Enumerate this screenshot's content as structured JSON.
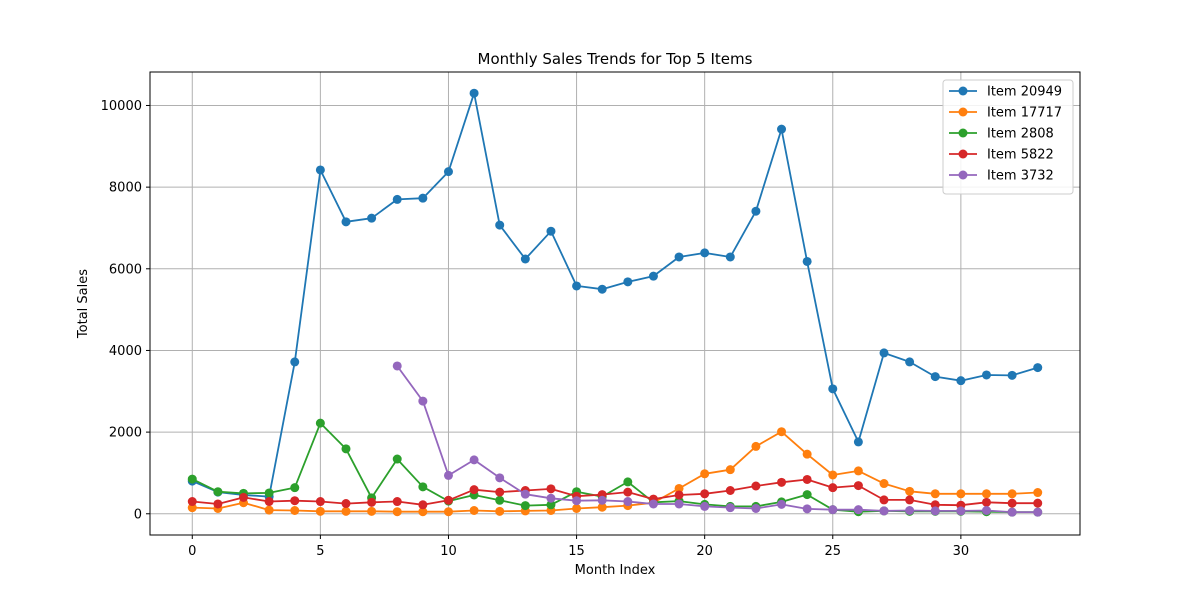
{
  "chart_data": {
    "type": "line",
    "title": "Monthly Sales Trends for Top 5 Items",
    "xlabel": "Month Index",
    "ylabel": "Total Sales",
    "xlim": [
      -1.65,
      34.65
    ],
    "ylim": [
      -520,
      10820
    ],
    "x_ticks": [
      0,
      5,
      10,
      15,
      20,
      25,
      30
    ],
    "y_ticks": [
      0,
      2000,
      4000,
      6000,
      8000,
      10000
    ],
    "grid": true,
    "legend_position": "top-right",
    "series": [
      {
        "name": "Item 20949",
        "color": "#1f77b4",
        "x": [
          0,
          1,
          2,
          3,
          4,
          5,
          6,
          7,
          8,
          9,
          10,
          11,
          12,
          13,
          14,
          15,
          16,
          17,
          18,
          19,
          20,
          21,
          22,
          23,
          24,
          25,
          26,
          27,
          28,
          29,
          30,
          31,
          32,
          33
        ],
        "values": [
          800,
          530,
          460,
          420,
          3720,
          8420,
          7150,
          7240,
          7700,
          7730,
          8380,
          10300,
          7070,
          6240,
          6920,
          5580,
          5500,
          5680,
          5820,
          6290,
          6390,
          6290,
          7410,
          9420,
          6180,
          3060,
          1760,
          3940,
          3720,
          3360,
          3260,
          3400,
          3390,
          3580
        ]
      },
      {
        "name": "Item 17717",
        "color": "#ff7f0e",
        "x": [
          0,
          1,
          2,
          3,
          4,
          5,
          6,
          7,
          8,
          9,
          10,
          11,
          12,
          13,
          14,
          15,
          16,
          17,
          18,
          19,
          20,
          21,
          22,
          23,
          24,
          25,
          26,
          27,
          28,
          29,
          30,
          31,
          32,
          33
        ],
        "values": [
          150,
          130,
          270,
          90,
          80,
          60,
          60,
          60,
          50,
          50,
          50,
          80,
          60,
          70,
          80,
          130,
          160,
          200,
          270,
          620,
          980,
          1080,
          1650,
          2010,
          1460,
          950,
          1050,
          740,
          550,
          490,
          490,
          490,
          490,
          520
        ]
      },
      {
        "name": "Item 2808",
        "color": "#2ca02c",
        "x": [
          0,
          1,
          2,
          3,
          4,
          5,
          6,
          7,
          8,
          9,
          10,
          11,
          12,
          13,
          14,
          15,
          16,
          17,
          18,
          19,
          20,
          21,
          22,
          23,
          24,
          25,
          26,
          27,
          28,
          29,
          30,
          31,
          32,
          33
        ],
        "values": [
          850,
          540,
          500,
          510,
          640,
          2220,
          1590,
          390,
          1340,
          660,
          310,
          460,
          330,
          200,
          220,
          540,
          420,
          780,
          280,
          310,
          230,
          180,
          180,
          290,
          470,
          100,
          50,
          70,
          60,
          60,
          60,
          50,
          40,
          40
        ]
      },
      {
        "name": "Item 5822",
        "color": "#d62728",
        "x": [
          0,
          1,
          2,
          3,
          4,
          5,
          6,
          7,
          8,
          9,
          10,
          11,
          12,
          13,
          14,
          15,
          16,
          17,
          18,
          19,
          20,
          21,
          22,
          23,
          24,
          25,
          26,
          27,
          28,
          29,
          30,
          31,
          32,
          33
        ],
        "values": [
          300,
          240,
          400,
          300,
          320,
          300,
          250,
          280,
          300,
          220,
          330,
          590,
          530,
          570,
          610,
          430,
          470,
          530,
          360,
          460,
          490,
          570,
          680,
          770,
          840,
          640,
          690,
          340,
          340,
          220,
          210,
          280,
          260,
          260
        ]
      },
      {
        "name": "Item 3732",
        "color": "#9467bd",
        "x": [
          8,
          9,
          10,
          11,
          12,
          13,
          14,
          15,
          16,
          17,
          18,
          19,
          20,
          21,
          22,
          23,
          24,
          25,
          26,
          27,
          28,
          29,
          30,
          31,
          32,
          33
        ],
        "values": [
          3620,
          2760,
          940,
          1320,
          880,
          480,
          380,
          320,
          330,
          300,
          240,
          240,
          180,
          150,
          130,
          230,
          120,
          100,
          100,
          70,
          80,
          70,
          70,
          80,
          40,
          40
        ]
      }
    ]
  }
}
